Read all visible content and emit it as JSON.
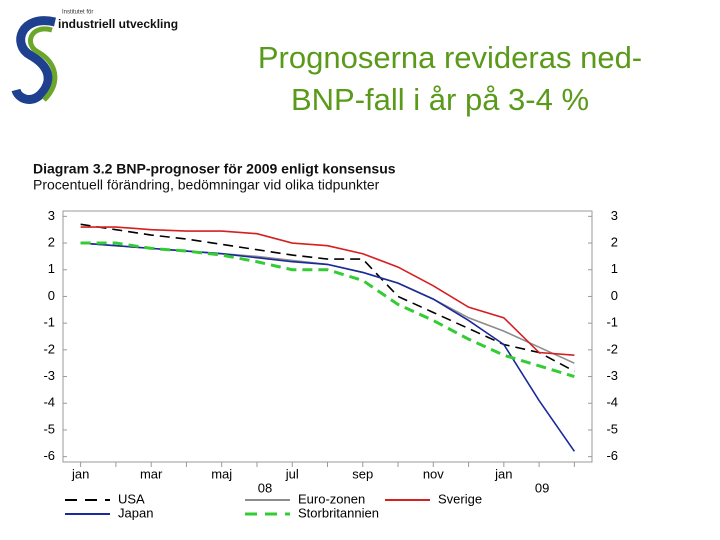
{
  "header": {
    "logo_small": "Institutet för",
    "logo": "industriell utveckling",
    "title_lines": [
      "Prognoserna revideras ned-",
      "BNP-fall i år på 3-4 %"
    ]
  },
  "chart_data": {
    "type": "line",
    "title": "Diagram 3.2 BNP-prognoser för 2009 enligt konsensus",
    "subtitle": "Procentuell förändring, bedömningar vid olika tidpunkter",
    "categories": [
      "jan",
      null,
      "mar",
      null,
      "maj",
      null,
      "jul",
      null,
      "sep",
      null,
      "nov",
      null,
      "jan",
      null,
      null
    ],
    "year_labels": [
      "08",
      "09"
    ],
    "ylim": [
      -6.2,
      3.2
    ],
    "yticks": [
      3,
      2,
      1,
      0,
      -1,
      -2,
      -3,
      -4,
      -5,
      -6
    ],
    "y2lim": [
      -6.2,
      3.2
    ],
    "y2ticks": [
      3,
      2,
      1,
      0,
      -1,
      -2,
      -3,
      -4,
      -5,
      -6
    ],
    "legend": "bottom",
    "series": [
      {
        "name": "USA",
        "color": "#000000",
        "style": "dashed",
        "values": [
          2.7,
          2.5,
          2.3,
          2.15,
          1.95,
          1.75,
          1.55,
          1.4,
          1.4,
          0.0,
          -0.6,
          -1.2,
          -1.8,
          -2.1,
          -2.8
        ]
      },
      {
        "name": "Euro-zonen",
        "color": "#8c8c8c",
        "style": "solid",
        "values": [
          2.0,
          1.9,
          1.8,
          1.7,
          1.6,
          1.5,
          1.35,
          1.2,
          0.9,
          0.5,
          -0.1,
          -0.8,
          -1.3,
          -1.9,
          -2.5
        ]
      },
      {
        "name": "Sverige",
        "color": "#d42020",
        "style": "solid",
        "values": [
          2.6,
          2.6,
          2.5,
          2.45,
          2.45,
          2.35,
          2.0,
          1.9,
          1.6,
          1.1,
          0.4,
          -0.4,
          -0.8,
          -2.1,
          -2.2
        ]
      },
      {
        "name": "Japan",
        "color": "#1a2a9a",
        "style": "solid",
        "values": [
          2.0,
          1.9,
          1.8,
          1.7,
          1.6,
          1.45,
          1.3,
          1.2,
          0.9,
          0.5,
          -0.1,
          -0.9,
          -1.8,
          -3.9,
          -5.8
        ]
      },
      {
        "name": "Storbritannien",
        "color": "#33cc33",
        "style": "dashed",
        "values": [
          2.0,
          2.0,
          1.8,
          1.7,
          1.55,
          1.3,
          1.0,
          1.0,
          0.6,
          -0.3,
          -0.9,
          -1.6,
          -2.2,
          -2.6,
          -3.0
        ]
      }
    ]
  }
}
